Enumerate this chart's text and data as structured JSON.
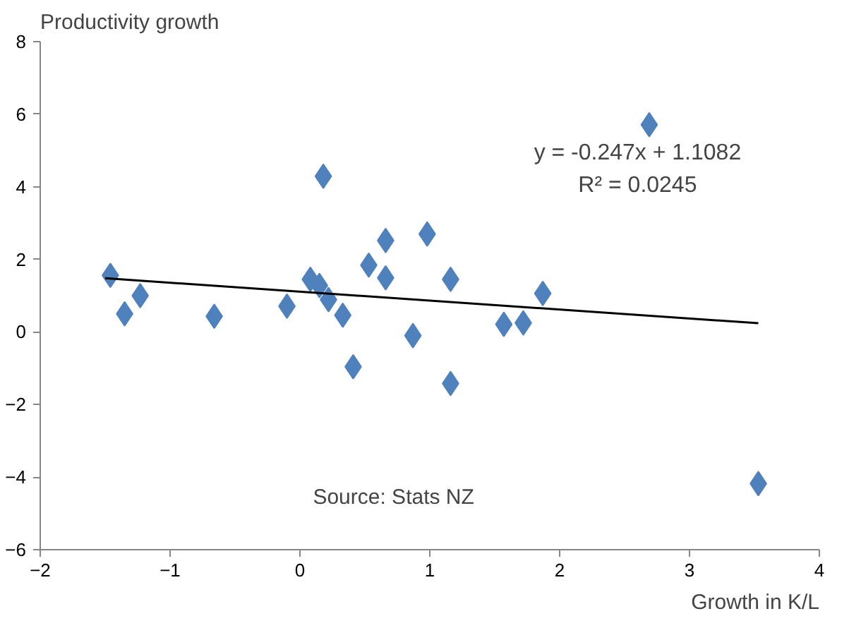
{
  "chart_data": {
    "type": "scatter",
    "xlabel": "Growth in K/L",
    "ylabel": "Productivity growth",
    "xlim": [
      -2,
      4
    ],
    "ylim": [
      -6,
      8
    ],
    "xticks": [
      -2,
      -1,
      0,
      1,
      2,
      3,
      4
    ],
    "yticks": [
      -6,
      -4,
      -2,
      0,
      2,
      4,
      6,
      8
    ],
    "series": [
      {
        "color": "#4f81bd",
        "marker": "diamond",
        "x": [
          -1.46,
          -1.35,
          -1.23,
          -0.66,
          -0.1,
          0.08,
          0.15,
          0.22,
          0.33,
          0.41,
          0.18,
          0.53,
          0.66,
          0.66,
          0.98,
          0.87,
          1.16,
          1.16,
          1.57,
          1.72,
          1.87,
          2.69,
          3.53
        ],
        "values": [
          1.56,
          0.5,
          1.0,
          0.43,
          0.71,
          1.45,
          1.28,
          0.89,
          0.46,
          -0.96,
          4.29,
          1.84,
          2.52,
          1.49,
          2.7,
          -0.1,
          1.45,
          -1.42,
          0.21,
          0.25,
          1.06,
          5.71,
          -4.18
        ]
      },
      {
        "type": "line",
        "marker": "none",
        "color": "#000000",
        "x": [
          -1.5,
          3.53
        ],
        "values": [
          1.48,
          0.24
        ]
      }
    ],
    "annotations": [
      "y = -0.247x + 1.1082",
      "R² = 0.0245",
      "Source: Stats NZ"
    ]
  }
}
